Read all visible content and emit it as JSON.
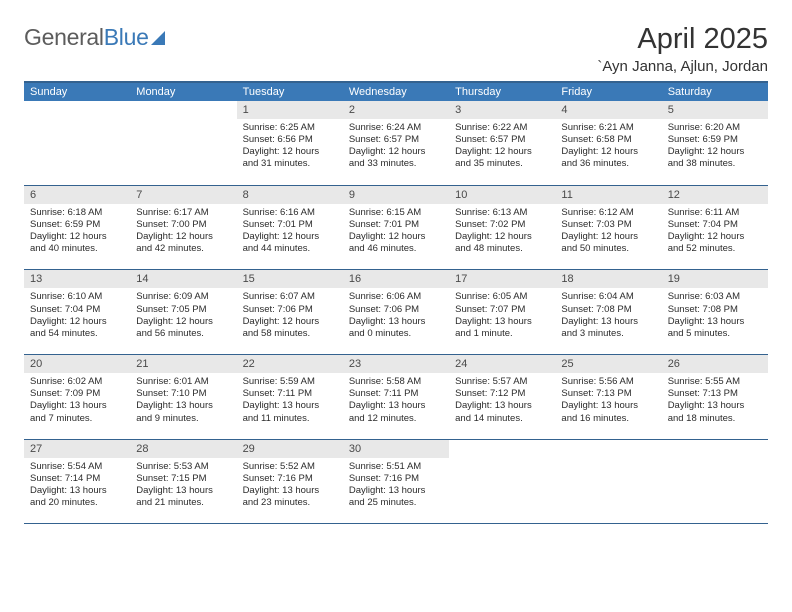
{
  "logo": {
    "text1": "General",
    "text2": "Blue"
  },
  "title": "April 2025",
  "location": "`Ayn Janna, Ajlun, Jordan",
  "colors": {
    "header_bg": "#3a79b7",
    "header_border": "#34628f",
    "daynum_bg": "#e8e8e8",
    "text": "#2b2b2b"
  },
  "weekdays": [
    "Sunday",
    "Monday",
    "Tuesday",
    "Wednesday",
    "Thursday",
    "Friday",
    "Saturday"
  ],
  "weeks": [
    [
      null,
      null,
      {
        "n": "1",
        "sr": "Sunrise: 6:25 AM",
        "ss": "Sunset: 6:56 PM",
        "dl": "Daylight: 12 hours and 31 minutes."
      },
      {
        "n": "2",
        "sr": "Sunrise: 6:24 AM",
        "ss": "Sunset: 6:57 PM",
        "dl": "Daylight: 12 hours and 33 minutes."
      },
      {
        "n": "3",
        "sr": "Sunrise: 6:22 AM",
        "ss": "Sunset: 6:57 PM",
        "dl": "Daylight: 12 hours and 35 minutes."
      },
      {
        "n": "4",
        "sr": "Sunrise: 6:21 AM",
        "ss": "Sunset: 6:58 PM",
        "dl": "Daylight: 12 hours and 36 minutes."
      },
      {
        "n": "5",
        "sr": "Sunrise: 6:20 AM",
        "ss": "Sunset: 6:59 PM",
        "dl": "Daylight: 12 hours and 38 minutes."
      }
    ],
    [
      {
        "n": "6",
        "sr": "Sunrise: 6:18 AM",
        "ss": "Sunset: 6:59 PM",
        "dl": "Daylight: 12 hours and 40 minutes."
      },
      {
        "n": "7",
        "sr": "Sunrise: 6:17 AM",
        "ss": "Sunset: 7:00 PM",
        "dl": "Daylight: 12 hours and 42 minutes."
      },
      {
        "n": "8",
        "sr": "Sunrise: 6:16 AM",
        "ss": "Sunset: 7:01 PM",
        "dl": "Daylight: 12 hours and 44 minutes."
      },
      {
        "n": "9",
        "sr": "Sunrise: 6:15 AM",
        "ss": "Sunset: 7:01 PM",
        "dl": "Daylight: 12 hours and 46 minutes."
      },
      {
        "n": "10",
        "sr": "Sunrise: 6:13 AM",
        "ss": "Sunset: 7:02 PM",
        "dl": "Daylight: 12 hours and 48 minutes."
      },
      {
        "n": "11",
        "sr": "Sunrise: 6:12 AM",
        "ss": "Sunset: 7:03 PM",
        "dl": "Daylight: 12 hours and 50 minutes."
      },
      {
        "n": "12",
        "sr": "Sunrise: 6:11 AM",
        "ss": "Sunset: 7:04 PM",
        "dl": "Daylight: 12 hours and 52 minutes."
      }
    ],
    [
      {
        "n": "13",
        "sr": "Sunrise: 6:10 AM",
        "ss": "Sunset: 7:04 PM",
        "dl": "Daylight: 12 hours and 54 minutes."
      },
      {
        "n": "14",
        "sr": "Sunrise: 6:09 AM",
        "ss": "Sunset: 7:05 PM",
        "dl": "Daylight: 12 hours and 56 minutes."
      },
      {
        "n": "15",
        "sr": "Sunrise: 6:07 AM",
        "ss": "Sunset: 7:06 PM",
        "dl": "Daylight: 12 hours and 58 minutes."
      },
      {
        "n": "16",
        "sr": "Sunrise: 6:06 AM",
        "ss": "Sunset: 7:06 PM",
        "dl": "Daylight: 13 hours and 0 minutes."
      },
      {
        "n": "17",
        "sr": "Sunrise: 6:05 AM",
        "ss": "Sunset: 7:07 PM",
        "dl": "Daylight: 13 hours and 1 minute."
      },
      {
        "n": "18",
        "sr": "Sunrise: 6:04 AM",
        "ss": "Sunset: 7:08 PM",
        "dl": "Daylight: 13 hours and 3 minutes."
      },
      {
        "n": "19",
        "sr": "Sunrise: 6:03 AM",
        "ss": "Sunset: 7:08 PM",
        "dl": "Daylight: 13 hours and 5 minutes."
      }
    ],
    [
      {
        "n": "20",
        "sr": "Sunrise: 6:02 AM",
        "ss": "Sunset: 7:09 PM",
        "dl": "Daylight: 13 hours and 7 minutes."
      },
      {
        "n": "21",
        "sr": "Sunrise: 6:01 AM",
        "ss": "Sunset: 7:10 PM",
        "dl": "Daylight: 13 hours and 9 minutes."
      },
      {
        "n": "22",
        "sr": "Sunrise: 5:59 AM",
        "ss": "Sunset: 7:11 PM",
        "dl": "Daylight: 13 hours and 11 minutes."
      },
      {
        "n": "23",
        "sr": "Sunrise: 5:58 AM",
        "ss": "Sunset: 7:11 PM",
        "dl": "Daylight: 13 hours and 12 minutes."
      },
      {
        "n": "24",
        "sr": "Sunrise: 5:57 AM",
        "ss": "Sunset: 7:12 PM",
        "dl": "Daylight: 13 hours and 14 minutes."
      },
      {
        "n": "25",
        "sr": "Sunrise: 5:56 AM",
        "ss": "Sunset: 7:13 PM",
        "dl": "Daylight: 13 hours and 16 minutes."
      },
      {
        "n": "26",
        "sr": "Sunrise: 5:55 AM",
        "ss": "Sunset: 7:13 PM",
        "dl": "Daylight: 13 hours and 18 minutes."
      }
    ],
    [
      {
        "n": "27",
        "sr": "Sunrise: 5:54 AM",
        "ss": "Sunset: 7:14 PM",
        "dl": "Daylight: 13 hours and 20 minutes."
      },
      {
        "n": "28",
        "sr": "Sunrise: 5:53 AM",
        "ss": "Sunset: 7:15 PM",
        "dl": "Daylight: 13 hours and 21 minutes."
      },
      {
        "n": "29",
        "sr": "Sunrise: 5:52 AM",
        "ss": "Sunset: 7:16 PM",
        "dl": "Daylight: 13 hours and 23 minutes."
      },
      {
        "n": "30",
        "sr": "Sunrise: 5:51 AM",
        "ss": "Sunset: 7:16 PM",
        "dl": "Daylight: 13 hours and 25 minutes."
      },
      null,
      null,
      null
    ]
  ]
}
